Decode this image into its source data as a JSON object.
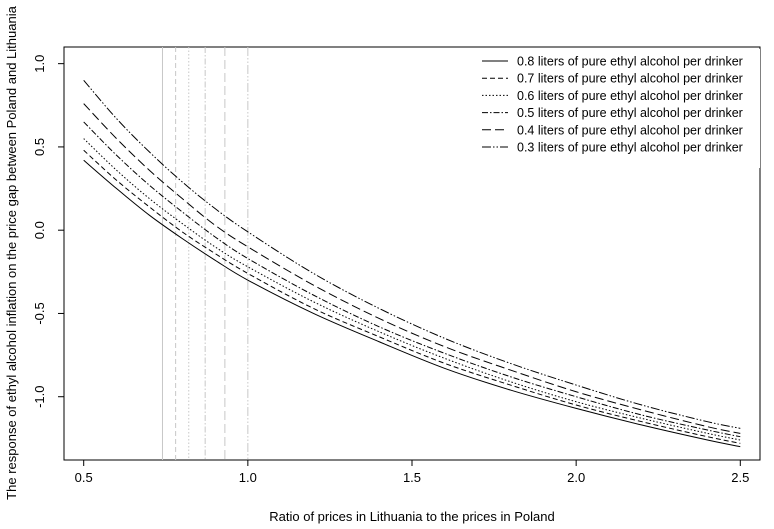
{
  "chart_data": {
    "type": "line",
    "title": "",
    "xlabel": "Ratio of prices in Lithuania to the prices in Poland",
    "ylabel": "The response of ethyl alcohol inflation on the price gap between Poland and Lithuania",
    "xlim": [
      0.44,
      2.56
    ],
    "ylim": [
      -1.38,
      1.1
    ],
    "x_ticks": [
      0.5,
      1.0,
      1.5,
      2.0,
      2.5
    ],
    "x_tick_labels": [
      "0.5",
      "1.0",
      "1.5",
      "2.0",
      "2.5"
    ],
    "y_ticks": [
      -1.0,
      -0.5,
      0.0,
      0.5,
      1.0
    ],
    "y_tick_labels": [
      "-1.0",
      "-0.5",
      "0.0",
      "0.5",
      "1.0"
    ],
    "grid": false,
    "legend_position": "top-right",
    "x": [
      0.5,
      0.6,
      0.7,
      0.8,
      0.9,
      1.0,
      1.2,
      1.4,
      1.6,
      1.8,
      2.0,
      2.2,
      2.4,
      2.5
    ],
    "series": [
      {
        "name": "0.8 liters of pure ethyl alcohol per drinker",
        "dash": "",
        "values": [
          0.42,
          0.25,
          0.09,
          -0.05,
          -0.18,
          -0.3,
          -0.5,
          -0.67,
          -0.83,
          -0.96,
          -1.07,
          -1.17,
          -1.26,
          -1.3
        ]
      },
      {
        "name": "0.7 liters of pure ethyl alcohol per drinker",
        "dash": "5,3",
        "values": [
          0.48,
          0.3,
          0.14,
          -0.01,
          -0.14,
          -0.26,
          -0.47,
          -0.64,
          -0.8,
          -0.93,
          -1.05,
          -1.15,
          -1.24,
          -1.28
        ]
      },
      {
        "name": "0.6 liters of pure ethyl alcohol per drinker",
        "dash": "1.5,2",
        "values": [
          0.55,
          0.36,
          0.19,
          0.04,
          -0.1,
          -0.22,
          -0.43,
          -0.61,
          -0.77,
          -0.91,
          -1.03,
          -1.13,
          -1.22,
          -1.26
        ]
      },
      {
        "name": "0.5 liters of pure ethyl alcohol per drinker",
        "dash": "6,2,1.5,2",
        "values": [
          0.65,
          0.45,
          0.27,
          0.11,
          -0.04,
          -0.17,
          -0.39,
          -0.58,
          -0.74,
          -0.88,
          -1.0,
          -1.11,
          -1.2,
          -1.24
        ]
      },
      {
        "name": "0.4 liters of pure ethyl alcohol per drinker",
        "dash": "9,4",
        "values": [
          0.76,
          0.55,
          0.36,
          0.19,
          0.03,
          -0.1,
          -0.33,
          -0.53,
          -0.7,
          -0.84,
          -0.97,
          -1.08,
          -1.18,
          -1.22
        ]
      },
      {
        "name": "0.3 liters of pure ethyl alcohol per drinker",
        "dash": "9,2,1.5,2,1.5,2",
        "values": [
          0.9,
          0.67,
          0.47,
          0.29,
          0.13,
          -0.01,
          -0.26,
          -0.47,
          -0.65,
          -0.8,
          -0.93,
          -1.05,
          -1.15,
          -1.19
        ]
      }
    ],
    "vertical_lines": [
      {
        "x": 0.74,
        "dash": ""
      },
      {
        "x": 0.78,
        "dash": "5,3"
      },
      {
        "x": 0.82,
        "dash": "1.5,2"
      },
      {
        "x": 0.87,
        "dash": "6,2,1.5,2"
      },
      {
        "x": 0.93,
        "dash": "9,4"
      },
      {
        "x": 1.0,
        "dash": "9,2,1.5,2,1.5,2"
      }
    ],
    "colors": {
      "series": "#000000",
      "vertical_lines": "#c8c8c8",
      "axes": "#000000"
    }
  }
}
